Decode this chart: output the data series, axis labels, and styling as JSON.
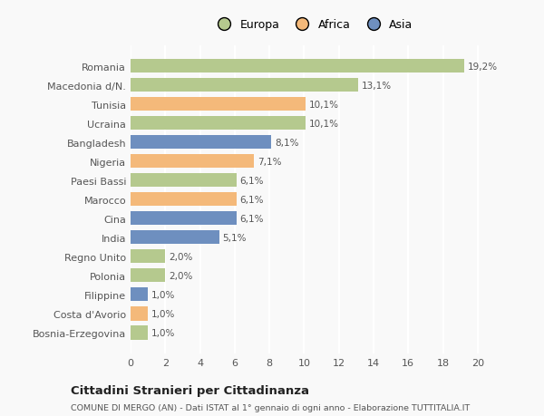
{
  "countries": [
    "Romania",
    "Macedonia d/N.",
    "Tunisia",
    "Ucraina",
    "Bangladesh",
    "Nigeria",
    "Paesi Bassi",
    "Marocco",
    "Cina",
    "India",
    "Regno Unito",
    "Polonia",
    "Filippine",
    "Costa d'Avorio",
    "Bosnia-Erzegovina"
  ],
  "values": [
    19.2,
    13.1,
    10.1,
    10.1,
    8.1,
    7.1,
    6.1,
    6.1,
    6.1,
    5.1,
    2.0,
    2.0,
    1.0,
    1.0,
    1.0
  ],
  "labels": [
    "19,2%",
    "13,1%",
    "10,1%",
    "10,1%",
    "8,1%",
    "7,1%",
    "6,1%",
    "6,1%",
    "6,1%",
    "5,1%",
    "2,0%",
    "2,0%",
    "1,0%",
    "1,0%",
    "1,0%"
  ],
  "colors": [
    "#b5c98e",
    "#b5c98e",
    "#f4b97a",
    "#b5c98e",
    "#6e8fbf",
    "#f4b97a",
    "#b5c98e",
    "#f4b97a",
    "#6e8fbf",
    "#6e8fbf",
    "#b5c98e",
    "#b5c98e",
    "#6e8fbf",
    "#f4b97a",
    "#b5c98e"
  ],
  "legend_labels": [
    "Europa",
    "Africa",
    "Asia"
  ],
  "legend_colors": [
    "#b5c98e",
    "#f4b97a",
    "#6e8fbf"
  ],
  "title": "Cittadini Stranieri per Cittadinanza",
  "subtitle": "COMUNE DI MERGO (AN) - Dati ISTAT al 1° gennaio di ogni anno - Elaborazione TUTTITALIA.IT",
  "xlim": [
    0,
    21
  ],
  "xticks": [
    0,
    2,
    4,
    6,
    8,
    10,
    12,
    14,
    16,
    18,
    20
  ],
  "bg_color": "#f9f9f9",
  "grid_color": "#ffffff",
  "bar_height": 0.72
}
